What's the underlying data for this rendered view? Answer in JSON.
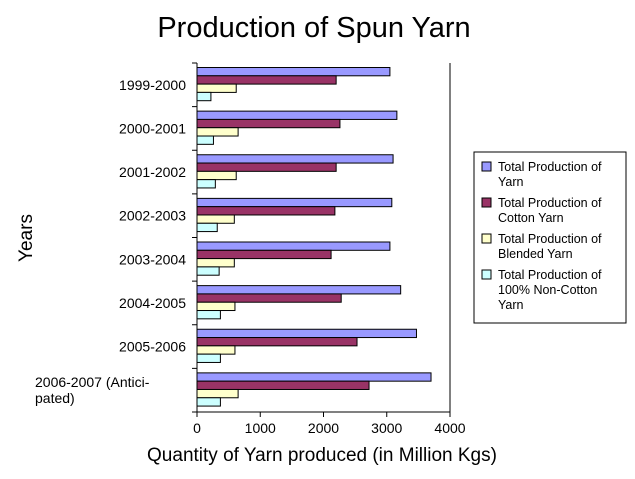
{
  "chart_data": {
    "type": "bar",
    "orientation": "horizontal",
    "title": "Production of Spun Yarn",
    "xlabel": "Quantity of Yarn produced (in Million Kgs)",
    "ylabel": "Years",
    "xlim": [
      0,
      4000
    ],
    "xticks": [
      "0",
      "1000",
      "2000",
      "3000",
      "4000"
    ],
    "categories": [
      [
        "1999-2000"
      ],
      [
        "2000-2001"
      ],
      [
        "2001-2002"
      ],
      [
        "2002-2003"
      ],
      [
        "2003-2004"
      ],
      [
        "2004-2005"
      ],
      [
        "2005-2006"
      ],
      [
        "2006-2007 (Antici-",
        "pated)"
      ]
    ],
    "series": [
      {
        "name": [
          "Total Production of",
          "Yarn"
        ],
        "color": "#9999ff",
        "values": [
          3050,
          3160,
          3100,
          3080,
          3050,
          3220,
          3470,
          3700
        ]
      },
      {
        "name": [
          "Total Production of",
          "Cotton Yarn"
        ],
        "color": "#993366",
        "values": [
          2200,
          2260,
          2200,
          2180,
          2120,
          2280,
          2530,
          2720
        ]
      },
      {
        "name": [
          "Total Production of",
          "Blended Yarn"
        ],
        "color": "#ffffcc",
        "values": [
          620,
          650,
          620,
          590,
          590,
          600,
          600,
          650
        ]
      },
      {
        "name": [
          "Total Production of",
          "100% Non-Cotton",
          "Yarn"
        ],
        "color": "#ccffff",
        "values": [
          220,
          260,
          290,
          320,
          350,
          370,
          370,
          370
        ]
      }
    ],
    "grid": {
      "vertical_at_max": true
    },
    "legend": "right"
  }
}
